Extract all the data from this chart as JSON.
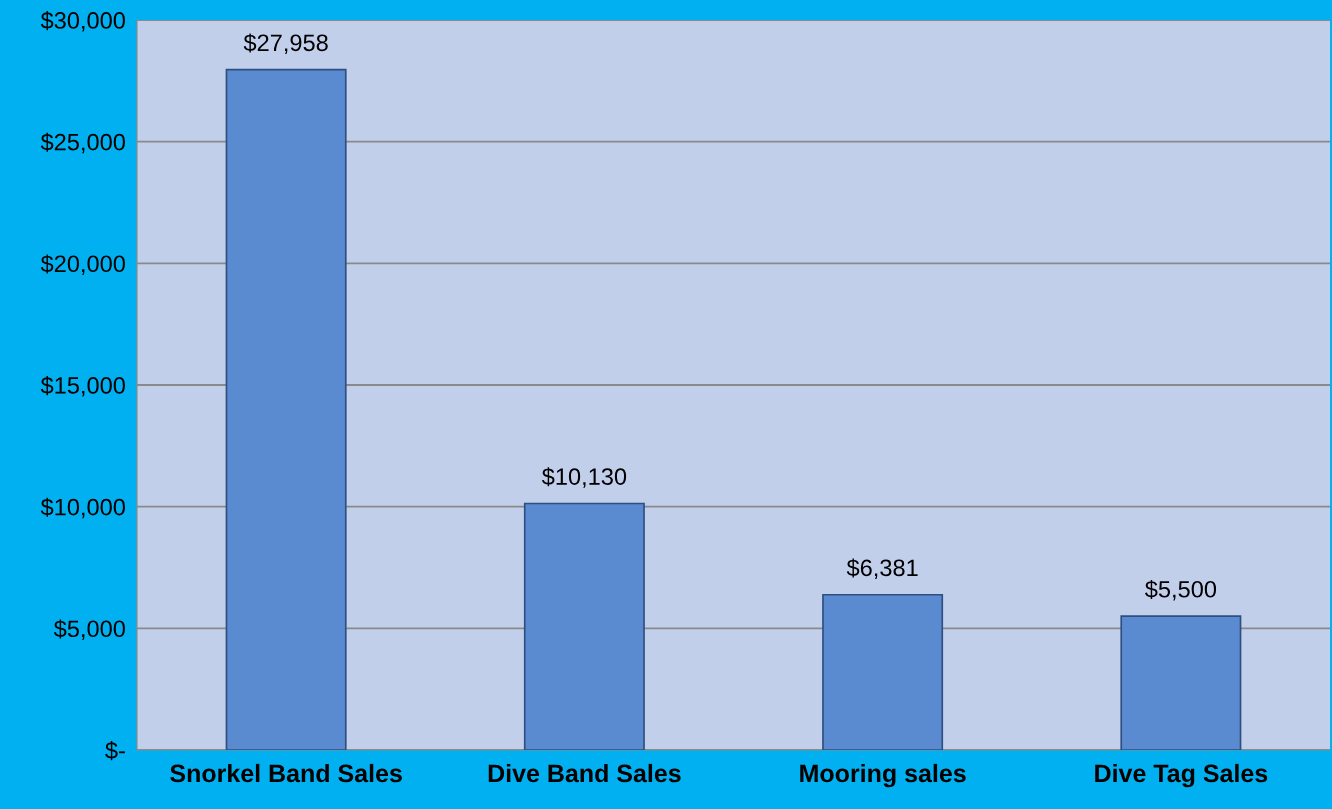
{
  "chart_data": {
    "type": "bar",
    "categories": [
      "Snorkel Band Sales",
      "Dive Band Sales",
      "Mooring sales",
      "Dive Tag Sales"
    ],
    "values": [
      27958,
      10130,
      6381,
      5500
    ],
    "value_labels": [
      "$27,958",
      "$10,130",
      "$6,381",
      "$5,500"
    ],
    "color": "#5a8acf",
    "ylim": [
      0,
      30000
    ],
    "yticks": [
      {
        "value": 0,
        "label": "$-"
      },
      {
        "value": 5000,
        "label": "$5,000"
      },
      {
        "value": 10000,
        "label": "$10,000"
      },
      {
        "value": 15000,
        "label": "$15,000"
      },
      {
        "value": 20000,
        "label": "$20,000"
      },
      {
        "value": 25000,
        "label": "$25,000"
      },
      {
        "value": 30000,
        "label": "$30,000"
      }
    ],
    "grid": "y"
  }
}
